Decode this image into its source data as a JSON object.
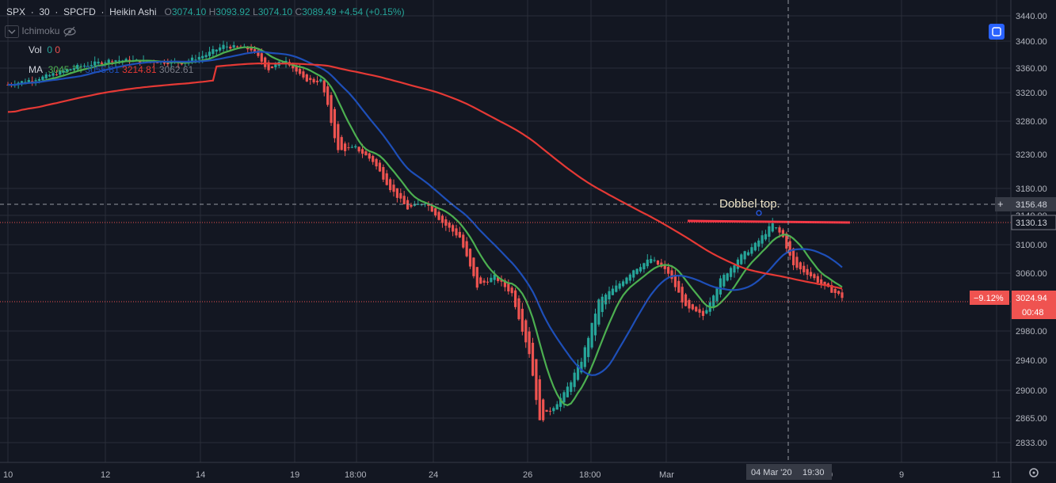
{
  "header": {
    "symbol": "SPX",
    "interval": "30",
    "source": "SPCFD",
    "chart_style": "Heikin Ashi",
    "ohlc": {
      "o_label": "O",
      "o": "3074.10",
      "h_label": "H",
      "h": "3093.92",
      "l_label": "L",
      "l": "3074.10",
      "c_label": "C",
      "c": "3089.49",
      "change": "+4.54 (+0.15%)"
    }
  },
  "indicators": {
    "ichimoku": "Ichimoku",
    "vol_label": "Vol",
    "vol_values": [
      "0",
      "0"
    ],
    "ma_label": "MA",
    "ma_values": [
      "3045.74",
      "3055.81",
      "3214.81",
      "3062.61"
    ]
  },
  "annotation": "Dobbel top.",
  "price_axis": {
    "ticks": [
      "3440.00",
      "3400.00",
      "3360.00",
      "3320.00",
      "3280.00",
      "3230.00",
      "3180.00",
      "3140.00",
      "3100.00",
      "3060.00",
      "2980.00",
      "2940.00",
      "2900.00",
      "2865.00",
      "2833.00"
    ],
    "crosshair_price": "3156.48",
    "line_price": "3130.13",
    "last_price": "3024.94",
    "last_change_pct": "−9.12%",
    "countdown": "00:48"
  },
  "time_axis": {
    "ticks": [
      "10",
      "12",
      "14",
      "19",
      "18:00",
      "24",
      "26",
      "18:00",
      "Mar",
      "9",
      "11"
    ],
    "crosshair_label": "04 Mar '20",
    "crosshair_time": "19:30",
    "partial_tick": "0"
  },
  "colors": {
    "background": "#131722",
    "up": "#26a69a",
    "down": "#ef5350",
    "ma_fast": "#4caf50",
    "ma_mid": "#1e4fb8",
    "ma_slow": "#e53935",
    "accent": "#2962ff"
  },
  "icons": {
    "eye": "eye-off-icon",
    "chevron": "chevron-down-icon",
    "settings": "gear-icon",
    "fullscreen": "fullscreen-icon"
  }
}
